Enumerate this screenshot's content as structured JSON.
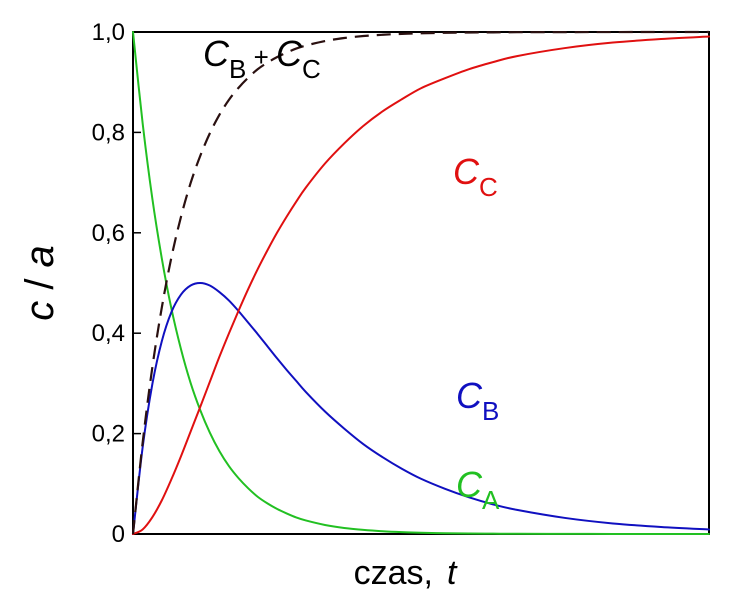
{
  "chart_data": {
    "type": "line",
    "title": "",
    "xlabel_text": "czas,",
    "xlabel_var": "t",
    "ylabel_var1": "c",
    "ylabel_sep": " / ",
    "ylabel_var2": "a",
    "xlim": [
      0,
      6
    ],
    "ylim": [
      0,
      1
    ],
    "yticks": [
      {
        "value": 0,
        "label": "0"
      },
      {
        "value": 0.2,
        "label": "0,2"
      },
      {
        "value": 0.4,
        "label": "0,4"
      },
      {
        "value": 0.6,
        "label": "0,6"
      },
      {
        "value": 0.8,
        "label": "0,8"
      },
      {
        "value": 1.0,
        "label": "1,0"
      }
    ],
    "x": [
      0,
      0.1,
      0.2,
      0.3,
      0.4,
      0.5,
      0.6,
      0.7,
      0.8,
      0.9,
      1.0,
      1.1,
      1.2,
      1.3,
      1.4,
      1.5,
      1.6,
      1.7,
      1.8,
      2.0,
      2.2,
      2.4,
      2.6,
      2.8,
      3.0,
      3.25,
      3.5,
      3.75,
      4.0,
      4.5,
      5.0,
      5.5,
      6.0
    ],
    "series": [
      {
        "name": "CA",
        "label_main": "C",
        "label_sub": "A",
        "color": "#22c022",
        "dash": false,
        "values": [
          1.0,
          0.819,
          0.67,
          0.549,
          0.449,
          0.368,
          0.301,
          0.247,
          0.202,
          0.165,
          0.135,
          0.111,
          0.091,
          0.074,
          0.061,
          0.05,
          0.041,
          0.033,
          0.027,
          0.018,
          0.012,
          0.0082,
          0.0055,
          0.0037,
          0.0025,
          0.0016,
          0.001,
          0.0007,
          0.0004,
          0.0002,
          0.0001,
          0.0,
          0.0
        ]
      },
      {
        "name": "CB",
        "label_main": "C",
        "label_sub": "B",
        "color": "#1010c0",
        "dash": false,
        "values": [
          0.0,
          0.172,
          0.297,
          0.384,
          0.442,
          0.477,
          0.495,
          0.5,
          0.495,
          0.482,
          0.465,
          0.444,
          0.421,
          0.398,
          0.374,
          0.35,
          0.327,
          0.305,
          0.283,
          0.244,
          0.21,
          0.179,
          0.153,
          0.13,
          0.11,
          0.09,
          0.073,
          0.059,
          0.048,
          0.032,
          0.021,
          0.014,
          0.009
        ]
      },
      {
        "name": "CC",
        "label_main": "C",
        "label_sub": "C",
        "color": "#e01010",
        "dash": false,
        "values": [
          0.0,
          0.009,
          0.033,
          0.067,
          0.109,
          0.155,
          0.204,
          0.253,
          0.303,
          0.353,
          0.4,
          0.445,
          0.488,
          0.528,
          0.565,
          0.6,
          0.632,
          0.662,
          0.69,
          0.738,
          0.778,
          0.813,
          0.842,
          0.866,
          0.888,
          0.908,
          0.926,
          0.94,
          0.952,
          0.968,
          0.979,
          0.986,
          0.991
        ]
      },
      {
        "name": "CB + CC",
        "label_main": "C",
        "label_sub": "B",
        "label_plus": " + ",
        "label_main2": "C",
        "label_sub2": "C",
        "color": "#2a1010",
        "dash": true,
        "values": [
          0.0,
          0.181,
          0.33,
          0.451,
          0.551,
          0.632,
          0.699,
          0.753,
          0.798,
          0.835,
          0.865,
          0.889,
          0.909,
          0.926,
          0.939,
          0.95,
          0.959,
          0.967,
          0.973,
          0.982,
          0.988,
          0.992,
          0.9945,
          0.9963,
          0.9975,
          0.9984,
          0.999,
          0.9993,
          0.9996,
          0.9998,
          0.9999,
          1.0,
          1.0
        ]
      }
    ],
    "legend": "inline labels"
  }
}
